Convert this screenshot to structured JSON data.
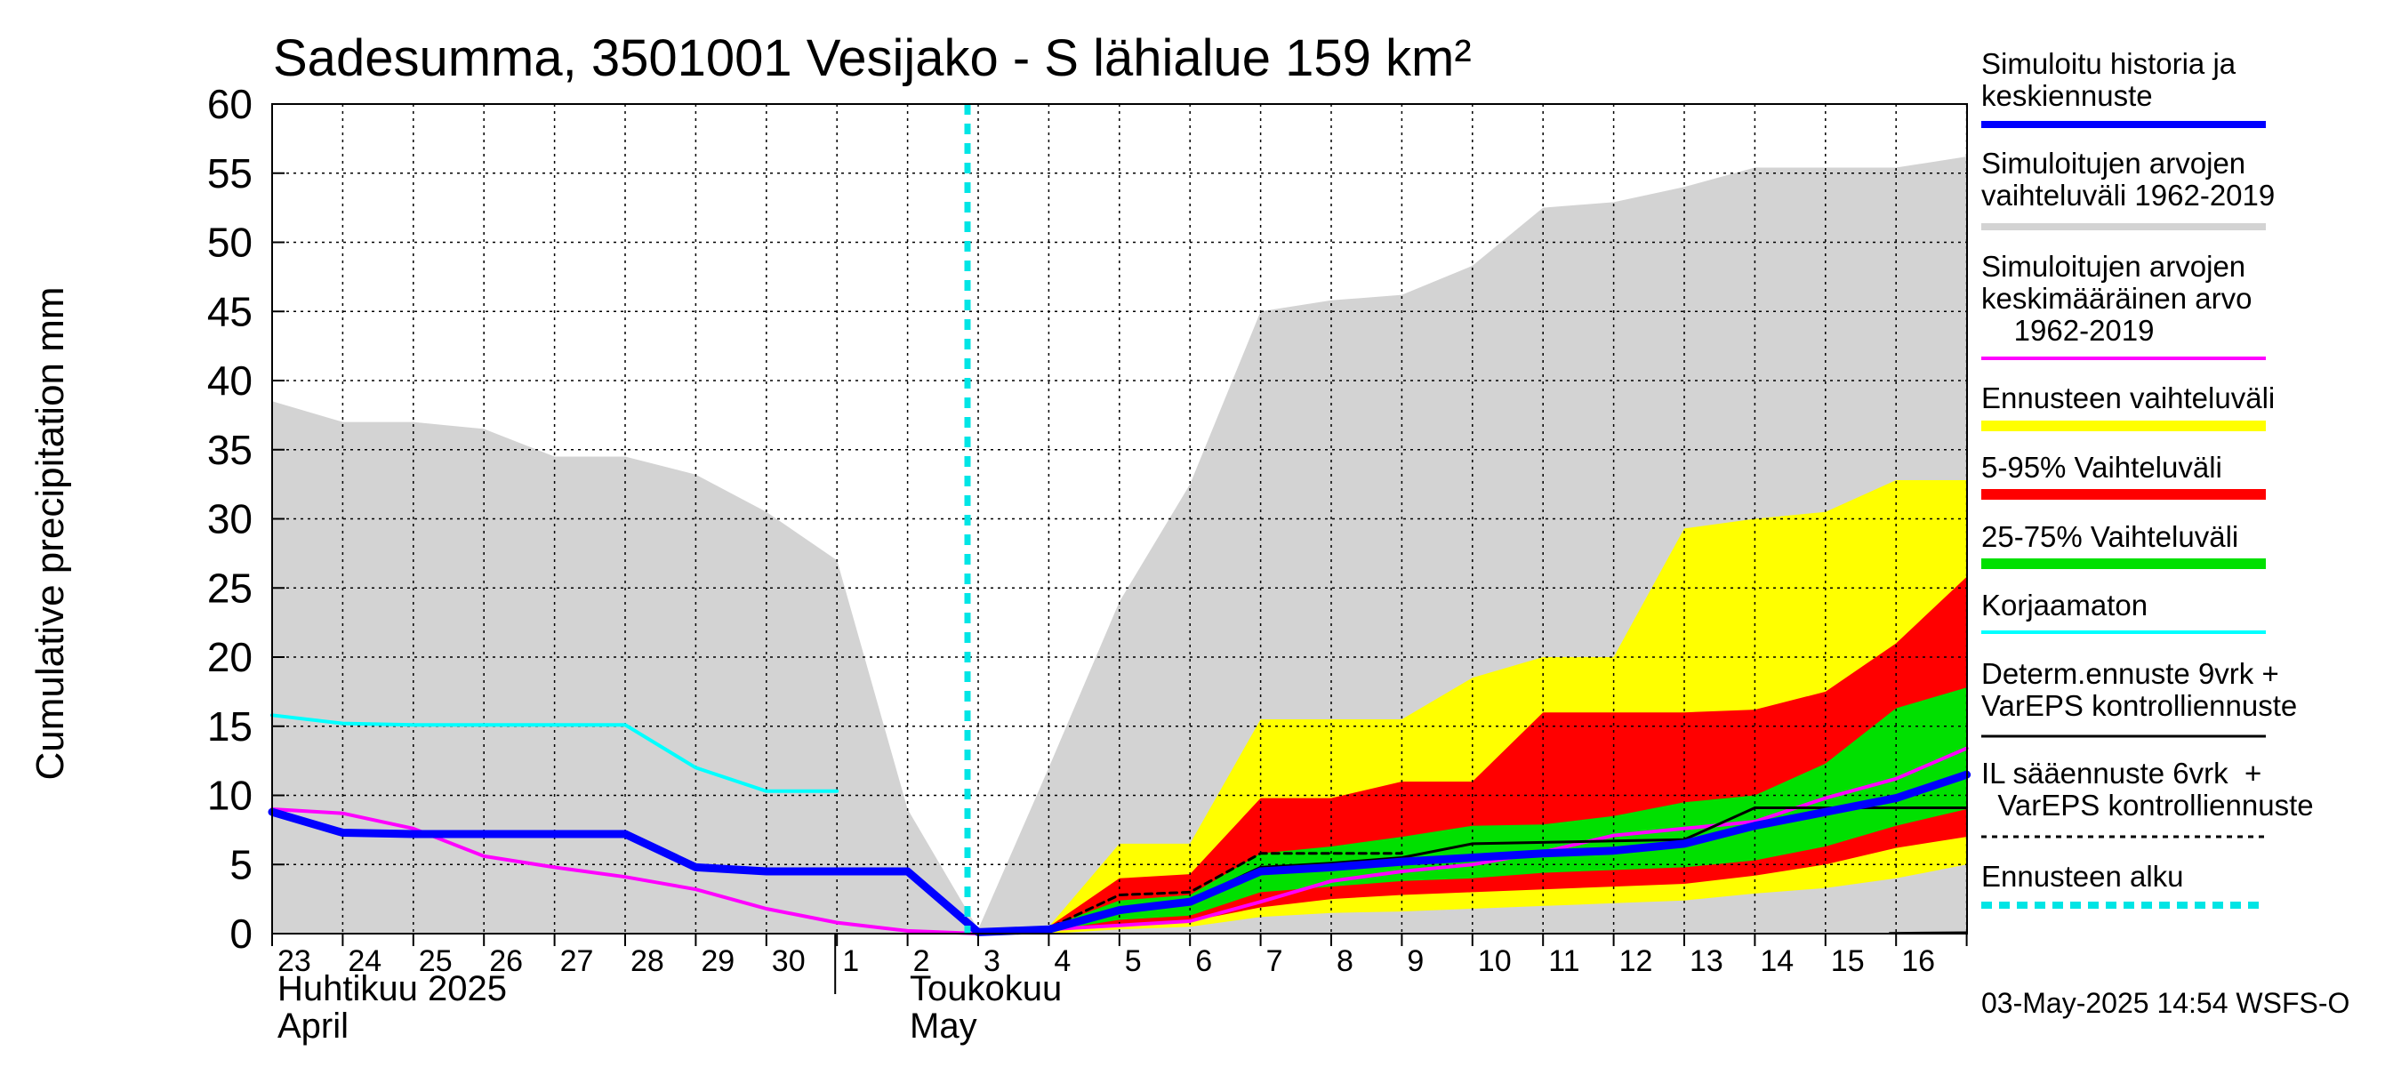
{
  "chart_data": {
    "type": "area",
    "title": "Sadesumma, 3501001 Vesijako - S lähialue 159 km²",
    "ylabel": "Cumulative precipitation    mm",
    "ylim": [
      0,
      60
    ],
    "yticks": [
      0,
      5,
      10,
      15,
      20,
      25,
      30,
      35,
      40,
      45,
      50,
      55,
      60
    ],
    "x_dates": [
      "23",
      "24",
      "25",
      "26",
      "27",
      "28",
      "29",
      "30",
      "1",
      "2",
      "3",
      "4",
      "5",
      "6",
      "7",
      "8",
      "9",
      "10",
      "11",
      "12",
      "13",
      "14",
      "15",
      "16"
    ],
    "month_labels": [
      {
        "fi": "Huhtikuu  2025",
        "en": "April"
      },
      {
        "fi": "Toukokuu",
        "en": "May"
      }
    ],
    "forecast_start_x": 10.0,
    "series": [
      {
        "name": "Simuloitujen arvojen vaihteluväli 1962-2019",
        "color": "#d3d3d3",
        "kind": "band",
        "x": [
          0,
          1,
          2,
          3,
          4,
          5,
          6,
          7,
          8,
          9,
          10,
          11,
          12,
          13,
          14,
          15,
          16,
          17,
          18,
          19,
          20,
          21,
          22,
          23,
          24
        ],
        "upper": [
          38.5,
          37,
          37,
          36.5,
          34.5,
          34.5,
          33.2,
          30.5,
          27,
          9,
          0.3,
          12,
          24,
          32.5,
          45,
          45.8,
          46.2,
          48.3,
          52.5,
          52.9,
          54,
          55.4,
          55.4,
          55.4,
          56.2
        ],
        "lower": [
          0,
          0,
          0,
          0,
          0,
          0,
          0,
          0,
          0,
          0,
          0,
          0,
          0,
          0,
          0,
          0,
          0,
          0,
          0,
          0,
          0,
          0,
          0,
          0,
          0
        ]
      },
      {
        "name": "Ennusteen vaihteluväli",
        "color": "#ffff00",
        "kind": "band",
        "x": [
          10,
          11,
          12,
          13,
          14,
          15,
          16,
          17,
          18,
          19,
          20,
          21,
          22,
          23,
          24
        ],
        "upper": [
          0.3,
          0.5,
          6.5,
          6.5,
          15.5,
          15.5,
          15.5,
          18.5,
          20,
          20,
          29.3,
          30,
          30.5,
          32.8,
          32.8
        ],
        "lower": [
          0,
          0,
          0.3,
          0.5,
          1.2,
          1.5,
          1.6,
          1.8,
          2,
          2.2,
          2.4,
          2.9,
          3.3,
          4,
          5
        ]
      },
      {
        "name": "5-95% Vaihteluväli",
        "color": "#ff0000",
        "kind": "band",
        "x": [
          10,
          11,
          12,
          13,
          14,
          15,
          16,
          17,
          18,
          19,
          20,
          21,
          22,
          23,
          24
        ],
        "upper": [
          0.3,
          0.5,
          4,
          4.3,
          9.8,
          9.8,
          11,
          11,
          16,
          16,
          16,
          16.2,
          17.5,
          21,
          25.8
        ],
        "lower": [
          0,
          0.2,
          0.6,
          0.9,
          1.9,
          2.5,
          2.8,
          3,
          3.2,
          3.4,
          3.6,
          4.2,
          5,
          6.2,
          7
        ]
      },
      {
        "name": "25-75% Vaihteluväli",
        "color": "#00e000",
        "kind": "band",
        "x": [
          10,
          11,
          12,
          13,
          14,
          15,
          16,
          17,
          18,
          19,
          20,
          21,
          22,
          23,
          24
        ],
        "upper": [
          0.3,
          0.5,
          2.4,
          2.8,
          5.8,
          6.3,
          7,
          7.8,
          7.9,
          8.5,
          9.5,
          10,
          12.3,
          16.3,
          17.8
        ],
        "lower": [
          0,
          0.2,
          1,
          1.3,
          3,
          3.4,
          3.8,
          4,
          4.4,
          4.6,
          4.8,
          5.3,
          6.3,
          7.8,
          9
        ]
      },
      {
        "name": "Simuloitu historia ja keskiennuste",
        "color": "#0000ff",
        "kind": "line",
        "x": [
          0,
          1,
          2,
          3,
          4,
          5,
          6,
          7,
          8,
          9,
          10,
          11,
          12,
          13,
          14,
          15,
          16,
          17,
          18,
          19,
          20,
          21,
          22,
          23,
          24
        ],
        "y": [
          8.8,
          7.3,
          7.2,
          7.2,
          7.2,
          7.2,
          4.8,
          4.5,
          4.5,
          4.5,
          0.1,
          0.3,
          1.7,
          2.3,
          4.5,
          4.8,
          5.2,
          5.5,
          5.8,
          6,
          6.5,
          7.8,
          8.8,
          9.8,
          11.5
        ]
      },
      {
        "name": "Simuloitujen arvojen keskimääräinen arvo 1962-2019",
        "color": "#ff00ff",
        "kind": "line",
        "x": [
          0,
          1,
          2,
          3,
          4,
          5,
          6,
          7,
          8,
          9,
          10,
          11,
          12,
          13,
          14,
          15,
          16,
          17,
          18,
          19,
          20,
          21,
          22,
          23,
          24
        ],
        "y": [
          9,
          8.7,
          7.6,
          5.6,
          4.8,
          4.1,
          3.2,
          1.8,
          0.8,
          0.2,
          0,
          0.3,
          0.6,
          0.9,
          2.3,
          3.8,
          4.5,
          5,
          5.9,
          7.1,
          7.6,
          8.1,
          9.8,
          11.2,
          13.4
        ]
      },
      {
        "name": "Korjaamaton",
        "color": "#00ffff",
        "kind": "line",
        "x": [
          0,
          1,
          2,
          3,
          4,
          5,
          6,
          7,
          8
        ],
        "y": [
          15.8,
          15.2,
          15.1,
          15.1,
          15.1,
          15.1,
          12,
          10.3,
          10.3
        ]
      },
      {
        "name": "Determ.ennuste 9vrk + VarEPS kontrolliennuste",
        "color": "#000000",
        "kind": "line",
        "x": [
          10,
          11,
          12,
          13,
          14,
          15,
          16,
          17,
          18,
          19,
          20,
          21,
          22,
          23,
          24
        ],
        "y": [
          0.1,
          0.3,
          1.8,
          2.4,
          4.8,
          5.1,
          5.5,
          6.5,
          6.6,
          6.7,
          6.8,
          9.1,
          9.1,
          9.1,
          9.1
        ]
      },
      {
        "name": "IL sääennuste 6vrk + VarEPS kontrolliennuste",
        "color": "#000000",
        "kind": "dashed",
        "x": [
          10,
          11,
          12,
          13,
          14,
          15,
          16
        ],
        "y": [
          0.1,
          0.4,
          2.8,
          3,
          5.8,
          5.8,
          5.8
        ]
      },
      {
        "name": "Ennusteen alku",
        "color": "#00e5e5",
        "kind": "vline",
        "x": [
          10
        ]
      }
    ]
  },
  "legend": [
    {
      "label": "Simuloitu historia ja\nkeskiennuste",
      "color": "#0000ff",
      "style": "solid",
      "weight": 8
    },
    {
      "label": "Simuloitujen arvojen\nvaihteluväli 1962-2019",
      "color": "#d3d3d3",
      "style": "solid",
      "weight": 8
    },
    {
      "label": "Simuloitujen arvojen\nkeskimääräinen arvo\n    1962-2019",
      "color": "#ff00ff",
      "style": "solid",
      "weight": 4
    },
    {
      "label": "Ennusteen vaihteluväli",
      "color": "#ffff00",
      "style": "solid",
      "weight": 12
    },
    {
      "label": "5-95% Vaihteluväli",
      "color": "#ff0000",
      "style": "solid",
      "weight": 12
    },
    {
      "label": "25-75% Vaihteluväli",
      "color": "#00e000",
      "style": "solid",
      "weight": 12
    },
    {
      "label": "Korjaamaton",
      "color": "#00ffff",
      "style": "solid",
      "weight": 4
    },
    {
      "label": "Determ.ennuste 9vrk +\nVarEPS kontrolliennuste",
      "color": "#000000",
      "style": "solid",
      "weight": 3
    },
    {
      "label": "IL sääennuste 6vrk  +\n  VarEPS kontrolliennuste",
      "color": "#000000",
      "style": "dashed",
      "weight": 3
    },
    {
      "label": "Ennusteen alku",
      "color": "#00e5e5",
      "style": "dashed",
      "weight": 8
    }
  ],
  "footer": "03-May-2025 14:54 WSFS-O"
}
